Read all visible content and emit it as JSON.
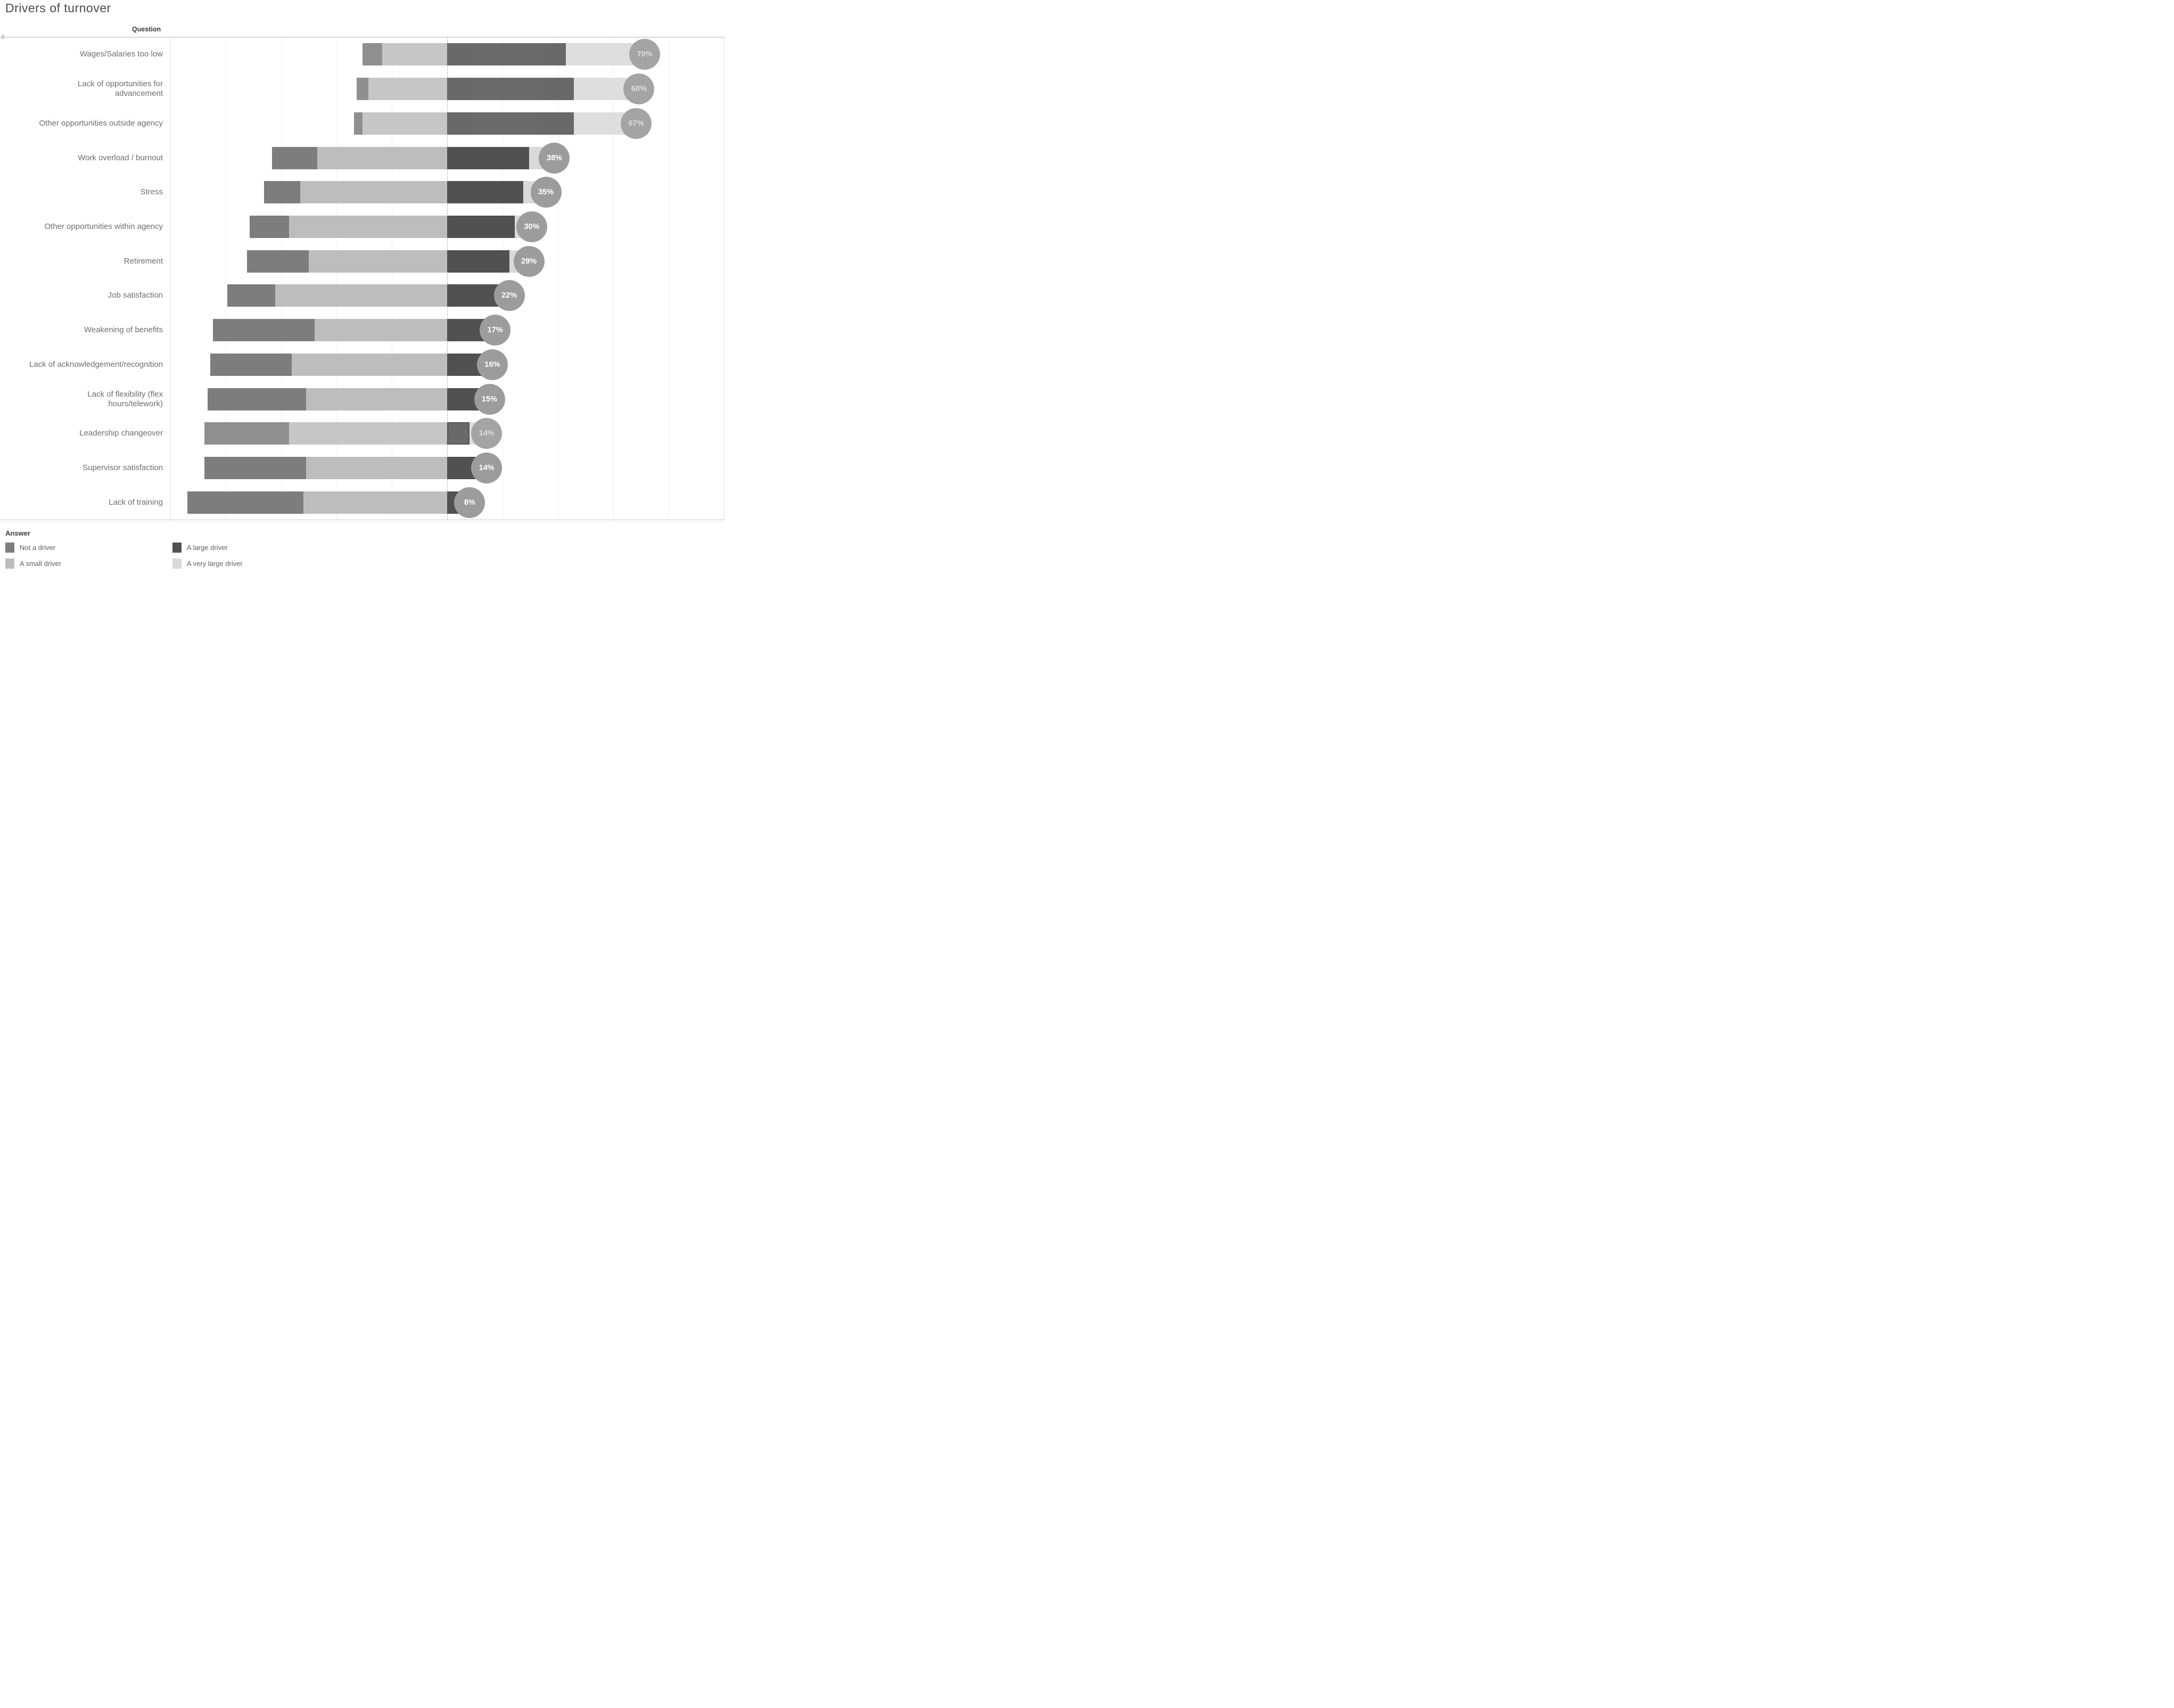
{
  "title": "Drivers of turnover",
  "header": {
    "question": "Question"
  },
  "legend": {
    "title": "Answer",
    "items": [
      {
        "label": "Not a driver",
        "color": "#7d7d7d"
      },
      {
        "label": "A small driver",
        "color": "#bdbdbd"
      },
      {
        "label": "A large driver",
        "color": "#515151"
      },
      {
        "label": "A very large driver",
        "color": "#d9d9d9"
      }
    ]
  },
  "chart_data": {
    "type": "bar",
    "subtype": "diverging-stacked-horizontal",
    "title": "Drivers of turnover",
    "xlabel": "",
    "ylabel": "Question",
    "axis": {
      "xlim": [
        -100,
        100
      ],
      "grid_interval": 20,
      "center_line": 0,
      "tick_labels_visible": false
    },
    "legend_position": "bottom",
    "categories": [
      "Not a driver",
      "A small driver",
      "A large driver",
      "A very large driver"
    ],
    "colors": {
      "not_a_driver": "#7d7d7d",
      "a_small_driver": "#bdbdbd",
      "a_large_driver": "#515151",
      "a_very_large_driver": "#d9d9d9",
      "bubble": "#9c9c9c",
      "bubble_dim": "#a4a4a4"
    },
    "rows": [
      {
        "label": "Wages/Salaries too low",
        "not_a_driver": 7,
        "a_small_driver": 23,
        "a_large_driver": 42,
        "a_very_large_driver": 28,
        "driver_pct": 70,
        "driver_pct_label": "70%",
        "dim": true,
        "highlight_large": false
      },
      {
        "label": "Lack of opportunities for\nadvancement",
        "not_a_driver": 4,
        "a_small_driver": 28,
        "a_large_driver": 45,
        "a_very_large_driver": 23,
        "driver_pct": 68,
        "driver_pct_label": "68%",
        "dim": true,
        "highlight_large": false
      },
      {
        "label": "Other opportunities outside agency",
        "not_a_driver": 3,
        "a_small_driver": 30,
        "a_large_driver": 45,
        "a_very_large_driver": 22,
        "driver_pct": 67,
        "driver_pct_label": "67%",
        "dim": true,
        "highlight_large": false
      },
      {
        "label": "Work overload / burnout",
        "not_a_driver": 16,
        "a_small_driver": 46,
        "a_large_driver": 29,
        "a_very_large_driver": 9,
        "driver_pct": 38,
        "driver_pct_label": "38%",
        "dim": false,
        "highlight_large": false
      },
      {
        "label": "Stress",
        "not_a_driver": 13,
        "a_small_driver": 52,
        "a_large_driver": 27,
        "a_very_large_driver": 8,
        "driver_pct": 35,
        "driver_pct_label": "35%",
        "dim": false,
        "highlight_large": false
      },
      {
        "label": "Other opportunities within agency",
        "not_a_driver": 14,
        "a_small_driver": 56,
        "a_large_driver": 24,
        "a_very_large_driver": 6,
        "driver_pct": 30,
        "driver_pct_label": "30%",
        "dim": false,
        "highlight_large": false
      },
      {
        "label": "Retirement",
        "not_a_driver": 22,
        "a_small_driver": 49,
        "a_large_driver": 22,
        "a_very_large_driver": 7,
        "driver_pct": 29,
        "driver_pct_label": "29%",
        "dim": false,
        "highlight_large": false
      },
      {
        "label": "Job satisfaction",
        "not_a_driver": 17,
        "a_small_driver": 61,
        "a_large_driver": 21,
        "a_very_large_driver": 1,
        "driver_pct": 22,
        "driver_pct_label": "22%",
        "dim": false,
        "highlight_large": false
      },
      {
        "label": "Weakening of benefits",
        "not_a_driver": 36,
        "a_small_driver": 47,
        "a_large_driver": 16,
        "a_very_large_driver": 1,
        "driver_pct": 17,
        "driver_pct_label": "17%",
        "dim": false,
        "highlight_large": false
      },
      {
        "label": "Lack of acknowledgement/recognition",
        "not_a_driver": 29,
        "a_small_driver": 55,
        "a_large_driver": 14,
        "a_very_large_driver": 2,
        "driver_pct": 16,
        "driver_pct_label": "16%",
        "dim": false,
        "highlight_large": false
      },
      {
        "label": "Lack of flexibility (flex\nhours/telework)",
        "not_a_driver": 35,
        "a_small_driver": 50,
        "a_large_driver": 12,
        "a_very_large_driver": 3,
        "driver_pct": 15,
        "driver_pct_label": "15%",
        "dim": false,
        "highlight_large": false
      },
      {
        "label": "Leadership changeover",
        "not_a_driver": 30,
        "a_small_driver": 56,
        "a_large_driver": 8,
        "a_very_large_driver": 6,
        "driver_pct": 14,
        "driver_pct_label": "14%",
        "dim": true,
        "highlight_large": true
      },
      {
        "label": "Supervisor satisfaction",
        "not_a_driver": 36,
        "a_small_driver": 50,
        "a_large_driver": 11,
        "a_very_large_driver": 3,
        "driver_pct": 14,
        "driver_pct_label": "14%",
        "dim": false,
        "highlight_large": false
      },
      {
        "label": "Lack of training",
        "not_a_driver": 41,
        "a_small_driver": 51,
        "a_large_driver": 6,
        "a_very_large_driver": 2,
        "driver_pct": 8,
        "driver_pct_label": "8%",
        "dim": false,
        "highlight_large": false
      }
    ]
  }
}
